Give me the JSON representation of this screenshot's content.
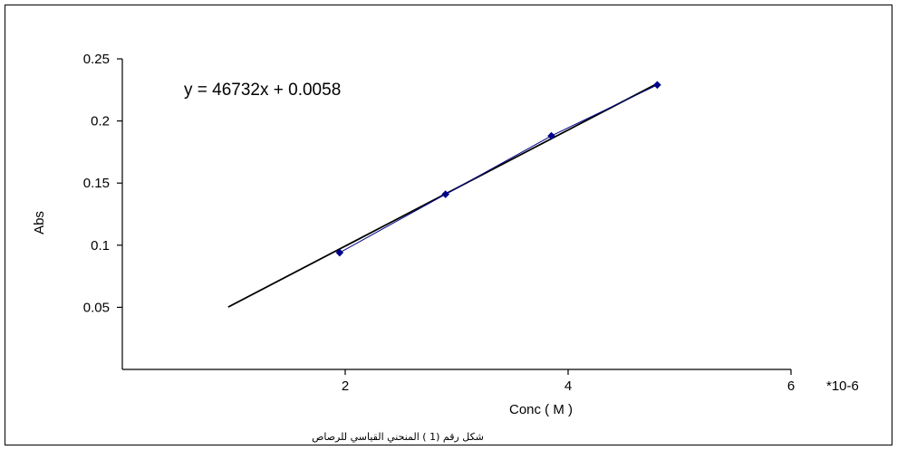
{
  "chart_data": {
    "type": "scatter",
    "xlabel": "Conc ( M )",
    "ylabel": "Abs",
    "x_unit_label": "*10-6",
    "xlim": [
      0,
      6
    ],
    "ylim": [
      0,
      0.25
    ],
    "x_ticks": [
      2,
      4,
      6
    ],
    "y_ticks": [
      0.25,
      0.2,
      0.15,
      0.1,
      0.05
    ],
    "x_tick_labels": [
      "2",
      "4",
      "6"
    ],
    "y_tick_labels": [
      "0.25",
      "0.2",
      "0.15",
      "0.1",
      "0.05"
    ],
    "series": [
      {
        "x": [
          1.95,
          2.9,
          3.85,
          4.8
        ],
        "y": [
          0.094,
          0.141,
          0.188,
          0.229
        ],
        "color": "#00008b"
      }
    ],
    "trendline": {
      "equation": "y = 46732x + 0.0058",
      "slope_per_unit": 0.046732,
      "intercept": 0.0058,
      "x_range": [
        0.95,
        4.8
      ],
      "color": "#000000"
    },
    "grid": false,
    "legend": "none",
    "caption": "شكل رقم (1 ) المنحني القياسي للرصاص"
  }
}
